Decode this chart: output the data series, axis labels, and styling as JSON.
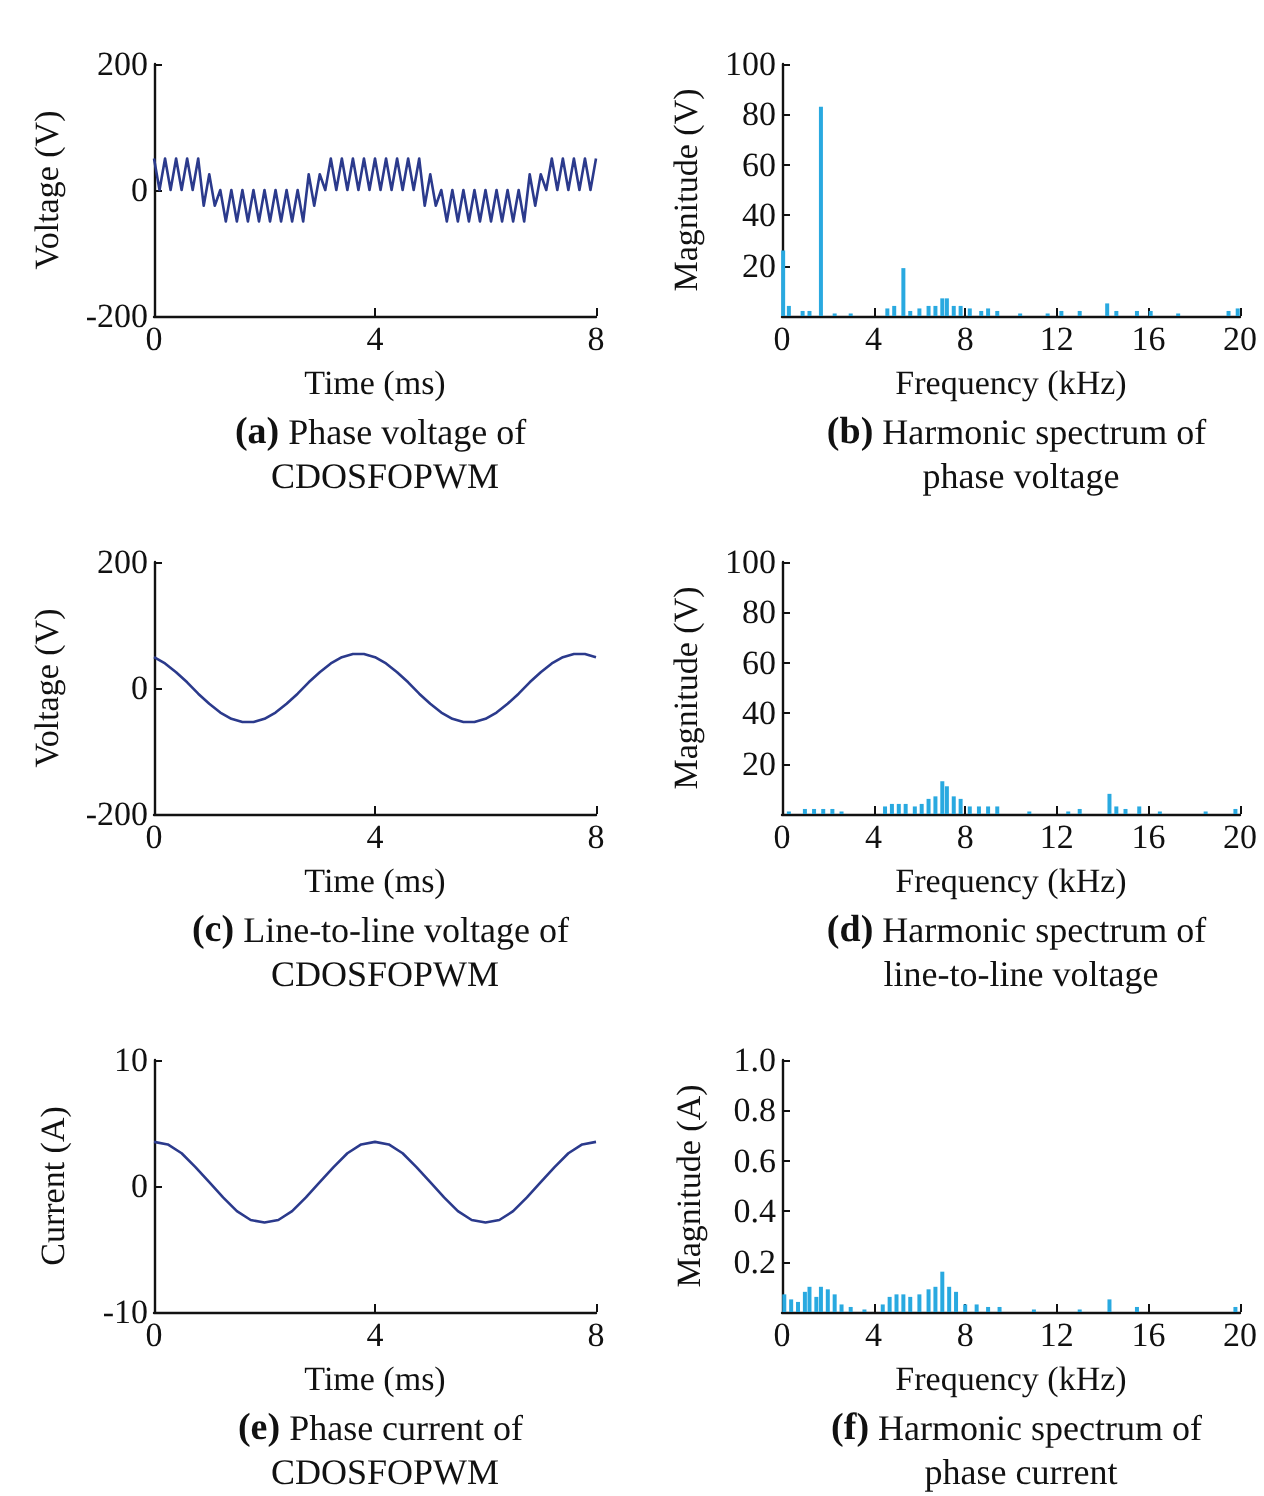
{
  "chart_data": [
    {
      "type": "line",
      "title": "(a) Phase voltage of CDOSFOPWM",
      "xlabel": "Time (ms)",
      "ylabel": "Voltage (V)",
      "color": "#2b3a8c",
      "xlim": [
        0,
        8
      ],
      "xticks": [
        0,
        4,
        8
      ],
      "ylim": [
        -200,
        200
      ],
      "yticks": [
        -200,
        0,
        200
      ],
      "x": [
        0,
        0.1,
        0.2,
        0.3,
        0.4,
        0.5,
        0.6,
        0.7,
        0.8,
        0.9,
        1,
        1.1,
        1.2,
        1.3,
        1.4,
        1.5,
        1.6,
        1.7,
        1.8,
        1.9,
        2,
        2.1,
        2.2,
        2.3,
        2.4,
        2.5,
        2.6,
        2.7,
        2.8,
        2.9,
        3,
        3.1,
        3.2,
        3.3,
        3.4,
        3.5,
        3.6,
        3.7,
        3.8,
        3.9,
        4,
        4.1,
        4.2,
        4.3,
        4.4,
        4.5,
        4.6,
        4.7,
        4.8,
        4.9,
        5,
        5.1,
        5.2,
        5.3,
        5.4,
        5.5,
        5.6,
        5.7,
        5.8,
        5.9,
        6,
        6.1,
        6.2,
        6.3,
        6.4,
        6.5,
        6.6,
        6.7,
        6.8,
        6.9,
        7,
        7.1,
        7.2,
        7.3,
        7.4,
        7.5,
        7.6,
        7.7,
        7.8,
        7.9,
        8
      ],
      "values": [
        50,
        0,
        50,
        0,
        50,
        0,
        50,
        0,
        50,
        -25,
        25,
        -25,
        0,
        -50,
        0,
        -50,
        0,
        -50,
        0,
        -50,
        0,
        -50,
        0,
        -50,
        0,
        -50,
        0,
        -50,
        25,
        -25,
        25,
        0,
        50,
        0,
        50,
        0,
        50,
        0,
        50,
        0,
        50,
        0,
        50,
        0,
        50,
        0,
        50,
        0,
        50,
        -25,
        25,
        -25,
        0,
        -50,
        0,
        -50,
        0,
        -50,
        0,
        -50,
        0,
        -50,
        0,
        -50,
        0,
        -50,
        0,
        -50,
        25,
        -25,
        25,
        0,
        50,
        0,
        50,
        0,
        50,
        0,
        50,
        0,
        50
      ]
    },
    {
      "type": "bar",
      "title": "(b) Harmonic spectrum of phase voltage",
      "xlabel": "Frequency (kHz)",
      "ylabel": "Magnitude (V)",
      "color": "#29a9e0",
      "xlim": [
        0,
        20
      ],
      "xticks": [
        0,
        4,
        8,
        12,
        16,
        20
      ],
      "ylim": [
        0,
        100
      ],
      "yticks": [
        20,
        40,
        60,
        80,
        100
      ],
      "x": [
        0.05,
        0.3,
        0.9,
        1.2,
        1.7,
        2.3,
        3,
        4.6,
        4.9,
        5.3,
        5.6,
        6,
        6.4,
        6.7,
        7,
        7.2,
        7.5,
        7.8,
        8.2,
        8.7,
        9,
        9.4,
        10.4,
        11.6,
        12.2,
        13,
        14.2,
        14.6,
        15.5,
        16.1,
        17.3,
        19.5,
        19.9
      ],
      "values": [
        26,
        4,
        2,
        2,
        83,
        1,
        1,
        3,
        4,
        19,
        2,
        3,
        4,
        4,
        7,
        7,
        4,
        4,
        3,
        2,
        3,
        2,
        1,
        1,
        2,
        2,
        5,
        2,
        2,
        2,
        1,
        2,
        3
      ]
    },
    {
      "type": "line",
      "title": "(c) Line-to-line voltage of CDOSFOPWM",
      "xlabel": "Time (ms)",
      "ylabel": "Voltage (V)",
      "color": "#2b3a8c",
      "xlim": [
        0,
        8
      ],
      "xticks": [
        0,
        4,
        8
      ],
      "ylim": [
        -200,
        200
      ],
      "yticks": [
        -200,
        0,
        200
      ],
      "x": [
        0,
        0.2,
        0.4,
        0.6,
        0.8,
        1,
        1.2,
        1.4,
        1.6,
        1.8,
        2,
        2.2,
        2.4,
        2.6,
        2.8,
        3,
        3.2,
        3.4,
        3.6,
        3.8,
        4,
        4.2,
        4.4,
        4.6,
        4.8,
        5,
        5.2,
        5.4,
        5.6,
        5.8,
        6,
        6.2,
        6.4,
        6.6,
        6.8,
        7,
        7.2,
        7.4,
        7.6,
        7.8,
        8
      ],
      "values": [
        49,
        39,
        25,
        9,
        -9,
        -25,
        -39,
        -49,
        -54,
        -54,
        -49,
        -39,
        -25,
        -9,
        9,
        25,
        39,
        49,
        54,
        54,
        49,
        39,
        25,
        9,
        -9,
        -25,
        -39,
        -49,
        -54,
        -54,
        -49,
        -39,
        -25,
        -9,
        9,
        25,
        39,
        49,
        54,
        54,
        49
      ]
    },
    {
      "type": "bar",
      "title": "(d) Harmonic spectrum of line-to-line voltage",
      "xlabel": "Frequency (kHz)",
      "ylabel": "Magnitude (V)",
      "color": "#29a9e0",
      "xlim": [
        0,
        20
      ],
      "xticks": [
        0,
        4,
        8,
        12,
        16,
        20
      ],
      "ylim": [
        0,
        100
      ],
      "yticks": [
        20,
        40,
        60,
        80,
        100
      ],
      "x": [
        0.3,
        1,
        1.4,
        1.8,
        2.2,
        2.6,
        4.5,
        4.8,
        5.1,
        5.4,
        5.8,
        6.1,
        6.4,
        6.7,
        7,
        7.2,
        7.5,
        7.8,
        8.2,
        8.6,
        9,
        9.4,
        10.8,
        12.5,
        13,
        14.3,
        14.6,
        15,
        15.6,
        16.5,
        18.5,
        19.8
      ],
      "values": [
        1,
        2,
        2,
        2,
        2,
        1,
        3,
        4,
        4,
        4,
        3,
        4,
        6,
        7,
        13,
        11,
        7,
        6,
        3,
        3,
        3,
        3,
        1,
        1,
        2,
        8,
        3,
        2,
        3,
        1,
        1,
        2
      ]
    },
    {
      "type": "line",
      "title": "(e) Phase current of CDOSFOPWM",
      "xlabel": "Time (ms)",
      "ylabel": "Current (A)",
      "color": "#2b3a8c",
      "xlim": [
        0,
        8
      ],
      "xticks": [
        0,
        4,
        8
      ],
      "ylim": [
        -10,
        10
      ],
      "yticks": [
        -10,
        0,
        10
      ],
      "x": [
        0,
        0.25,
        0.5,
        0.75,
        1,
        1.25,
        1.5,
        1.75,
        2,
        2.25,
        2.5,
        2.75,
        3,
        3.25,
        3.5,
        3.75,
        4,
        4.25,
        4.5,
        4.75,
        5,
        5.25,
        5.5,
        5.75,
        6,
        6.25,
        6.5,
        6.75,
        7,
        7.25,
        7.5,
        7.75,
        8
      ],
      "values": [
        3.5,
        3.3,
        2.6,
        1.5,
        0.3,
        -0.9,
        -2.0,
        -2.7,
        -2.9,
        -2.7,
        -2.0,
        -0.9,
        0.3,
        1.5,
        2.6,
        3.3,
        3.5,
        3.3,
        2.6,
        1.5,
        0.3,
        -0.9,
        -2.0,
        -2.7,
        -2.9,
        -2.7,
        -2.0,
        -0.9,
        0.3,
        1.5,
        2.6,
        3.3,
        3.5
      ]
    },
    {
      "type": "bar",
      "title": "(f) Harmonic spectrum of phase current",
      "xlabel": "Frequency (kHz)",
      "ylabel": "Magnitude (A)",
      "color": "#29a9e0",
      "xlim": [
        0,
        20
      ],
      "xticks": [
        0,
        4,
        8,
        12,
        16,
        20
      ],
      "ylim": [
        0,
        1
      ],
      "yticks": [
        0.2,
        0.4,
        0.6,
        0.8,
        {
          "value": 1,
          "label": "1.0"
        }
      ],
      "x": [
        0.1,
        0.4,
        0.7,
        1,
        1.2,
        1.5,
        1.7,
        2,
        2.3,
        2.6,
        3,
        3.6,
        4.4,
        4.7,
        5,
        5.3,
        5.6,
        6,
        6.4,
        6.7,
        7,
        7.3,
        7.6,
        8,
        8.5,
        9,
        9.5,
        11,
        13,
        14.3,
        15.5,
        19.8
      ],
      "values": [
        0.07,
        0.05,
        0.04,
        0.08,
        0.1,
        0.06,
        0.1,
        0.09,
        0.07,
        0.03,
        0.02,
        0.01,
        0.03,
        0.06,
        0.07,
        0.07,
        0.06,
        0.07,
        0.09,
        0.1,
        0.16,
        0.1,
        0.08,
        0.03,
        0.03,
        0.02,
        0.02,
        0.01,
        0.01,
        0.05,
        0.02,
        0.02
      ]
    }
  ]
}
